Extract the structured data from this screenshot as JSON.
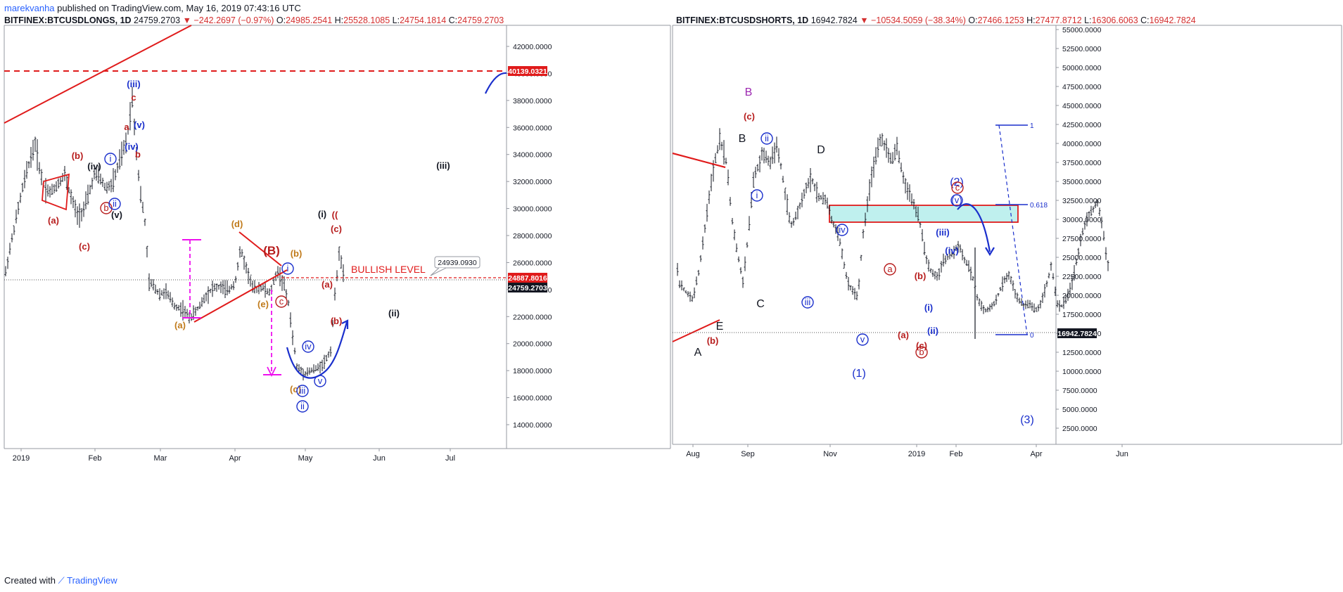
{
  "publish": {
    "author": "marekvanha",
    "text": "published on TradingView.com, May 16, 2019 07:43:16 UTC"
  },
  "footer": {
    "created": "Created with",
    "brand": "TradingView"
  },
  "charts": [
    {
      "symbol": "BITFINEX:BTCUSDLONGS, 1D",
      "last": "24759.2703",
      "change": "−242.2697 (−0.97%)",
      "open": "24985.2541",
      "high": "25528.1085",
      "low": "24754.1814",
      "close": "24759.2703"
    },
    {
      "symbol": "BITFINEX:BTCUSDSHORTS, 1D",
      "last": "16942.7824",
      "change": "−10534.5059 (−38.34%)",
      "open": "27466.1253",
      "high": "27477.8712",
      "low": "16306.6063",
      "close": "16942.7824"
    }
  ],
  "colors": {
    "up": "#131722",
    "red": "#e01b1b",
    "blue": "#1a2fcc",
    "magenta": "#ee11ee",
    "orange": "#c07a1a",
    "darkred": "#b71c1c",
    "teal": "#bff0ee",
    "purple": "#9c27b0"
  },
  "chart_data": [
    {
      "type": "ohlc",
      "symbol": "BITFINEX:BTCUSDLONGS",
      "interval": "1D",
      "ylim": [
        12500,
        44000
      ],
      "y_ticks": [
        "14000.0000",
        "16000.0000",
        "18000.0000",
        "20000.0000",
        "22000.0000",
        "24000.0000",
        "26000.0000",
        "28000.0000",
        "30000.0000",
        "32000.0000",
        "34000.0000",
        "36000.0000",
        "38000.0000",
        "40000.0000",
        "42000.0000"
      ],
      "x_ticks": [
        "2019",
        "Feb",
        "Mar",
        "Apr",
        "May",
        "Jun",
        "Jul"
      ],
      "price_labels": [
        {
          "value": "40139.0321",
          "kind": "red"
        },
        {
          "value": "24887.8016",
          "kind": "red"
        },
        {
          "value": "24759.2703",
          "kind": "dark"
        }
      ],
      "callout": "24939.0930",
      "annotation_text": "BULLISH LEVEL",
      "wave_labels": [
        {
          "t": "(a)",
          "c": "darkred"
        },
        {
          "t": "(b)",
          "c": "darkred"
        },
        {
          "t": "(c)",
          "c": "darkred"
        },
        {
          "t": "(i)",
          "c": "black"
        },
        {
          "t": "(ii)",
          "c": "black"
        },
        {
          "t": "(iii)",
          "c": "black"
        },
        {
          "t": "(iv)",
          "c": "black"
        },
        {
          "t": "(v)",
          "c": "black"
        },
        {
          "t": "a",
          "c": "darkred"
        },
        {
          "t": "b",
          "c": "darkred"
        },
        {
          "t": "c",
          "c": "darkred"
        },
        {
          "t": "b",
          "c": "darkred",
          "circ": true
        },
        {
          "t": "i",
          "c": "blue",
          "circ": true
        },
        {
          "t": "ii",
          "c": "blue",
          "circ": true
        },
        {
          "t": "(iii)",
          "c": "blue"
        },
        {
          "t": "(iv)",
          "c": "blue"
        },
        {
          "t": "(v)",
          "c": "blue"
        },
        {
          "t": "(a)",
          "c": "orange"
        },
        {
          "t": "(b)",
          "c": "orange"
        },
        {
          "t": "(c)",
          "c": "orange"
        },
        {
          "t": "(d)",
          "c": "orange"
        },
        {
          "t": "(e)",
          "c": "orange"
        },
        {
          "t": "(B)",
          "c": "darkred"
        },
        {
          "t": "c",
          "c": "darkred",
          "circ": true
        },
        {
          "t": "i",
          "c": "blue",
          "circ": true
        },
        {
          "t": "ii",
          "c": "blue",
          "circ": true
        },
        {
          "t": "iii",
          "c": "blue",
          "circ": true
        },
        {
          "t": "iv",
          "c": "blue",
          "circ": true
        },
        {
          "t": "v",
          "c": "blue",
          "circ": true
        },
        {
          "t": "(a)",
          "c": "darkred"
        },
        {
          "t": "(b)",
          "c": "darkred"
        },
        {
          "t": "(c)",
          "c": "darkred"
        },
        {
          "t": "((",
          "c": "darkred"
        }
      ]
    },
    {
      "type": "ohlc",
      "symbol": "BITFINEX:BTCUSDSHORTS",
      "interval": "1D",
      "ylim": [
        1500,
        56000
      ],
      "y_ticks": [
        "2500.0000",
        "5000.0000",
        "7500.0000",
        "10000.0000",
        "12500.0000",
        "15000.0000",
        "17500.0000",
        "20000.0000",
        "22500.0000",
        "25000.0000",
        "27500.0000",
        "30000.0000",
        "32500.0000",
        "35000.0000",
        "37500.0000",
        "40000.0000",
        "42500.0000",
        "45000.0000",
        "47500.0000",
        "50000.0000",
        "52500.0000",
        "55000.0000"
      ],
      "x_ticks": [
        "Aug",
        "Sep",
        "Nov",
        "2019",
        "Feb",
        "Apr",
        "Jun"
      ],
      "price_labels": [
        {
          "value": "16942.7824",
          "kind": "dark"
        }
      ],
      "fib_levels": [
        {
          "label": "1"
        },
        {
          "label": "0.618"
        },
        {
          "label": "0"
        }
      ],
      "wave_labels": [
        {
          "t": "A",
          "c": "black"
        },
        {
          "t": "B",
          "c": "black"
        },
        {
          "t": "C",
          "c": "black"
        },
        {
          "t": "D",
          "c": "black"
        },
        {
          "t": "E",
          "c": "black"
        },
        {
          "t": "B",
          "c": "purple"
        },
        {
          "t": "(c)",
          "c": "darkred"
        },
        {
          "t": "(b)",
          "c": "darkred"
        },
        {
          "t": "i",
          "c": "blue",
          "circ": true
        },
        {
          "t": "ii",
          "c": "blue",
          "circ": true
        },
        {
          "t": "iii",
          "c": "blue",
          "circ": true
        },
        {
          "t": "iv",
          "c": "blue",
          "circ": true
        },
        {
          "t": "v",
          "c": "blue",
          "circ": true
        },
        {
          "t": "(1)",
          "c": "blue"
        },
        {
          "t": "(2)",
          "c": "blue"
        },
        {
          "t": "(3)",
          "c": "blue"
        },
        {
          "t": "a",
          "c": "darkred",
          "circ": true
        },
        {
          "t": "(a)",
          "c": "darkred"
        },
        {
          "t": "(b)",
          "c": "darkred"
        },
        {
          "t": "(c)",
          "c": "darkred"
        },
        {
          "t": "b",
          "c": "darkred",
          "circ": true
        },
        {
          "t": "c",
          "c": "darkred",
          "circ": true
        },
        {
          "t": "(i)",
          "c": "blue"
        },
        {
          "t": "(ii)",
          "c": "blue"
        },
        {
          "t": "(iii)",
          "c": "blue"
        },
        {
          "t": "(iv)",
          "c": "blue"
        },
        {
          "t": "(v)",
          "c": "blue",
          "circ": true
        }
      ]
    }
  ]
}
